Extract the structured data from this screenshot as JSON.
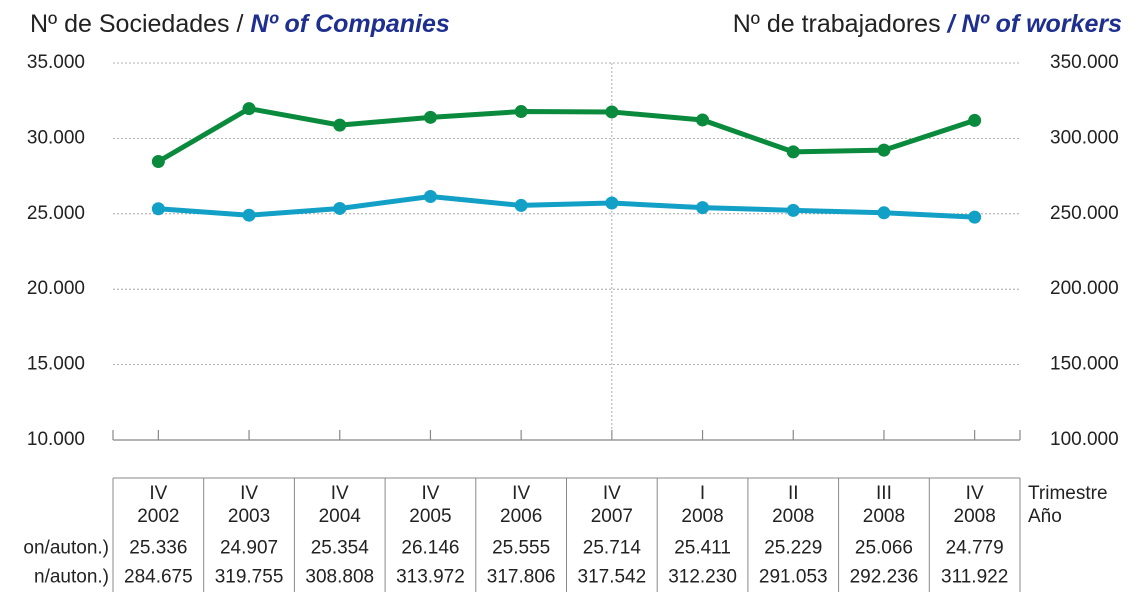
{
  "chart_data": {
    "type": "line",
    "ylabel": "Nº de Sociedades /",
    "ylabel_en": "Nº of Companies",
    "y2label": "Nº de trabajadores",
    "y2label_en": "/ Nº of workers",
    "categories": [
      [
        "IV",
        "2002"
      ],
      [
        "IV",
        "2003"
      ],
      [
        "IV",
        "2004"
      ],
      [
        "IV",
        "2005"
      ],
      [
        "IV",
        "2006"
      ],
      [
        "IV",
        "2007"
      ],
      [
        "I",
        "2008"
      ],
      [
        "II",
        "2008"
      ],
      [
        "III",
        "2008"
      ],
      [
        "IV",
        "2008"
      ]
    ],
    "category_row_labels": [
      "Trimestre",
      "Año"
    ],
    "series": [
      {
        "name": "on/auton.)",
        "color": "#12a0c6",
        "text_color": "#2fb3d6",
        "axis": "y",
        "values": [
          25336,
          24907,
          25354,
          26146,
          25555,
          25714,
          25411,
          25229,
          25066,
          24779
        ],
        "value_labels": [
          "25.336",
          "24.907",
          "25.354",
          "26.146",
          "25.555",
          "25.714",
          "25.411",
          "25.229",
          "25.066",
          "24.779"
        ]
      },
      {
        "name": "n/auton.)",
        "color": "#0a8a3c",
        "text_color": "#1f9a48",
        "axis": "y2",
        "values": [
          284675,
          319755,
          308808,
          313972,
          317806,
          317542,
          312230,
          291053,
          292236,
          311922
        ],
        "value_labels": [
          "284.675",
          "319.755",
          "308.808",
          "313.972",
          "317.806",
          "317.542",
          "312.230",
          "291.053",
          "292.236",
          "311.922"
        ]
      }
    ],
    "ylim": [
      10000,
      35000
    ],
    "yticks": [
      {
        "value": 10000,
        "label": "10.000"
      },
      {
        "value": 15000,
        "label": "15.000"
      },
      {
        "value": 20000,
        "label": "20.000"
      },
      {
        "value": 25000,
        "label": "25.000"
      },
      {
        "value": 30000,
        "label": "30.000"
      },
      {
        "value": 35000,
        "label": "35.000"
      }
    ],
    "y2lim": [
      100000,
      350000
    ],
    "y2ticks": [
      {
        "value": 100000,
        "label": "100.000"
      },
      {
        "value": 150000,
        "label": "150.000"
      },
      {
        "value": 200000,
        "label": "200.000"
      },
      {
        "value": 250000,
        "label": "250.000"
      },
      {
        "value": 300000,
        "label": "300.000"
      },
      {
        "value": 350000,
        "label": "350.000"
      }
    ],
    "grid": true
  }
}
